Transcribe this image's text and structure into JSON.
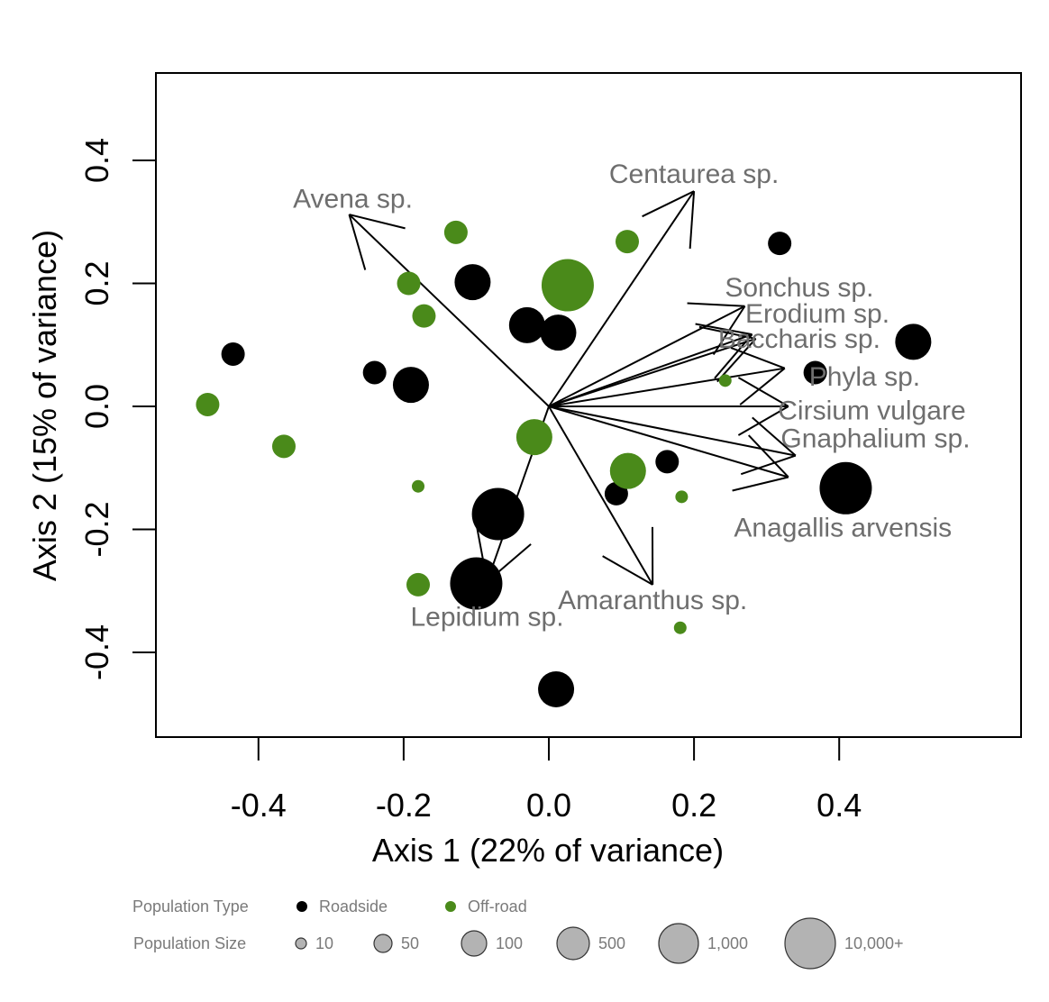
{
  "chart_data": {
    "type": "scatter",
    "xlabel": "Axis 1 (22% of variance)",
    "ylabel": "Axis 2 (15% of variance)",
    "xlim": [
      -0.54,
      0.65
    ],
    "ylim": [
      -0.54,
      0.54
    ],
    "x_ticks": [
      -0.4,
      -0.2,
      0.0,
      0.2,
      0.4
    ],
    "x_tick_labels": [
      "-0.4",
      "-0.2",
      "0.0",
      "0.2",
      "0.4"
    ],
    "y_ticks": [
      -0.4,
      -0.2,
      0.0,
      0.2,
      0.4
    ],
    "y_tick_labels": [
      "-0.4",
      "-0.2",
      "0.0",
      "0.2",
      "0.4"
    ],
    "grid": false,
    "colors": {
      "roadside": "#000000",
      "offroad": "#4a8a1a",
      "legend_size_fill": "#b3b3b3",
      "label_gray": "#6e6e6e"
    },
    "points": [
      {
        "type": "roadside",
        "x": -0.435,
        "y": 0.085,
        "size": "50"
      },
      {
        "type": "roadside",
        "x": -0.24,
        "y": 0.055,
        "size": "50"
      },
      {
        "type": "roadside",
        "x": -0.19,
        "y": 0.035,
        "size": "100"
      },
      {
        "type": "roadside",
        "x": -0.105,
        "y": 0.202,
        "size": "100"
      },
      {
        "type": "roadside",
        "x": -0.03,
        "y": 0.132,
        "size": "100"
      },
      {
        "type": "roadside",
        "x": 0.013,
        "y": 0.12,
        "size": "100"
      },
      {
        "type": "roadside",
        "x": 0.318,
        "y": 0.265,
        "size": "50"
      },
      {
        "type": "roadside",
        "x": 0.502,
        "y": 0.105,
        "size": "100"
      },
      {
        "type": "roadside",
        "x": 0.367,
        "y": 0.055,
        "size": "50"
      },
      {
        "type": "roadside",
        "x": 0.409,
        "y": -0.133,
        "size": "1,000"
      },
      {
        "type": "roadside",
        "x": 0.163,
        "y": -0.09,
        "size": "50"
      },
      {
        "type": "roadside",
        "x": 0.093,
        "y": -0.142,
        "size": "50"
      },
      {
        "type": "roadside",
        "x": -0.07,
        "y": -0.175,
        "size": "1,000"
      },
      {
        "type": "roadside",
        "x": -0.1,
        "y": -0.288,
        "size": "1,000"
      },
      {
        "type": "roadside",
        "x": 0.01,
        "y": -0.46,
        "size": "100"
      },
      {
        "type": "offroad",
        "x": -0.47,
        "y": 0.003,
        "size": "50"
      },
      {
        "type": "offroad",
        "x": -0.365,
        "y": -0.065,
        "size": "50"
      },
      {
        "type": "offroad",
        "x": -0.193,
        "y": 0.2,
        "size": "50"
      },
      {
        "type": "offroad",
        "x": -0.172,
        "y": 0.147,
        "size": "50"
      },
      {
        "type": "offroad",
        "x": -0.128,
        "y": 0.283,
        "size": "50"
      },
      {
        "type": "offroad",
        "x": 0.026,
        "y": 0.197,
        "size": "1,000"
      },
      {
        "type": "offroad",
        "x": 0.108,
        "y": 0.268,
        "size": "50"
      },
      {
        "type": "offroad",
        "x": -0.02,
        "y": -0.05,
        "size": "100"
      },
      {
        "type": "offroad",
        "x": 0.109,
        "y": -0.105,
        "size": "100"
      },
      {
        "type": "offroad",
        "x": -0.18,
        "y": -0.13,
        "size": "10"
      },
      {
        "type": "offroad",
        "x": -0.18,
        "y": -0.29,
        "size": "50"
      },
      {
        "type": "offroad",
        "x": 0.183,
        "y": -0.147,
        "size": "10"
      },
      {
        "type": "offroad",
        "x": 0.181,
        "y": -0.36,
        "size": "10"
      },
      {
        "type": "offroad",
        "x": 0.243,
        "y": 0.042,
        "size": "10"
      }
    ],
    "vectors": [
      {
        "label": "Avena sp.",
        "x": -0.275,
        "y": 0.312,
        "label_x": -0.27,
        "label_y": 0.335
      },
      {
        "label": "Centaurea sp.",
        "x": 0.2,
        "y": 0.35,
        "label_x": 0.2,
        "label_y": 0.375
      },
      {
        "label": "Sonchus sp.",
        "x": 0.27,
        "y": 0.163,
        "label_x": 0.345,
        "label_y": 0.19
      },
      {
        "label": "Erodium sp.",
        "x": 0.28,
        "y": 0.117,
        "label_x": 0.37,
        "label_y": 0.148
      },
      {
        "label": "Baccharis sp.",
        "x": 0.285,
        "y": 0.11,
        "label_x": 0.345,
        "label_y": 0.107
      },
      {
        "label": "Phyla sp.",
        "x": 0.325,
        "y": 0.062,
        "label_x": 0.435,
        "label_y": 0.045
      },
      {
        "label": "Cirsium vulgare",
        "x": 0.33,
        "y": 0.0,
        "label_x": 0.445,
        "label_y": -0.01
      },
      {
        "label": "Gnaphalium sp.",
        "x": 0.34,
        "y": -0.08,
        "label_x": 0.45,
        "label_y": -0.055
      },
      {
        "label": "Anagallis arvensis",
        "x": 0.33,
        "y": -0.115,
        "label_x": 0.405,
        "label_y": -0.2
      },
      {
        "label": "Amaranthus sp.",
        "x": 0.143,
        "y": -0.29,
        "label_x": 0.143,
        "label_y": -0.318
      },
      {
        "label": "Lepidium sp.",
        "x": -0.085,
        "y": -0.285,
        "label_x": -0.085,
        "label_y": -0.345
      }
    ]
  },
  "legend": {
    "population_type_label": "Population Type",
    "types": [
      {
        "key": "roadside",
        "label": "Roadside"
      },
      {
        "key": "offroad",
        "label": "Off-road"
      }
    ],
    "population_size_label": "Population Size",
    "sizes": [
      "10",
      "50",
      "100",
      "500",
      "1,000",
      "10,000+"
    ]
  }
}
